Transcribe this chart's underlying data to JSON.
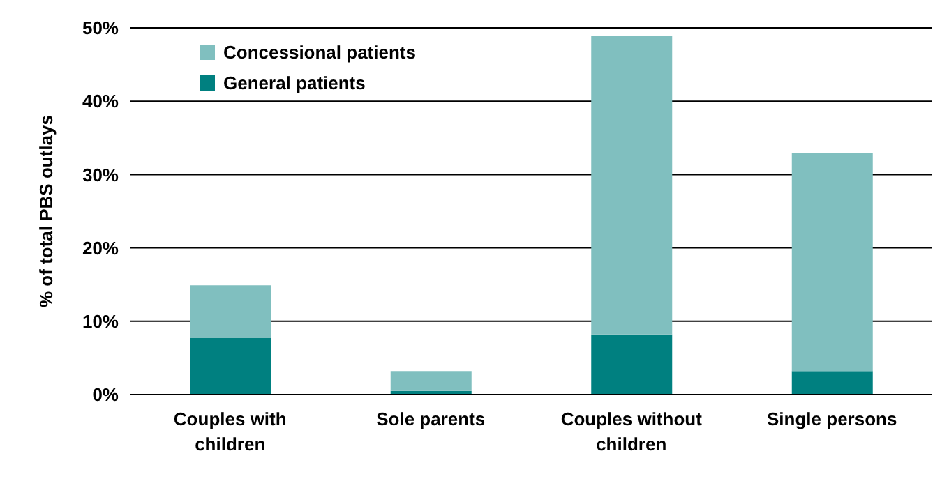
{
  "chart_data": {
    "type": "bar",
    "stacked": true,
    "ylabel": "% of total PBS outlays",
    "categories": [
      "Couples with children",
      "Sole parents",
      "Couples without children",
      "Single persons"
    ],
    "series": [
      {
        "name": "General patients",
        "color": "#008080",
        "values": [
          7.7,
          0.5,
          8.2,
          3.2
        ]
      },
      {
        "name": "Concessional patients",
        "color": "#80bfbf",
        "values": [
          7.2,
          2.7,
          40.7,
          29.7
        ]
      }
    ],
    "ylim": [
      0,
      50
    ],
    "yticks": [
      {
        "value": 0,
        "label": "0%"
      },
      {
        "value": 10,
        "label": "10%"
      },
      {
        "value": 20,
        "label": "20%"
      },
      {
        "value": 30,
        "label": "30%"
      },
      {
        "value": 40,
        "label": "40%"
      },
      {
        "value": 50,
        "label": "50%"
      }
    ],
    "grid": "y",
    "legend": "top left"
  }
}
